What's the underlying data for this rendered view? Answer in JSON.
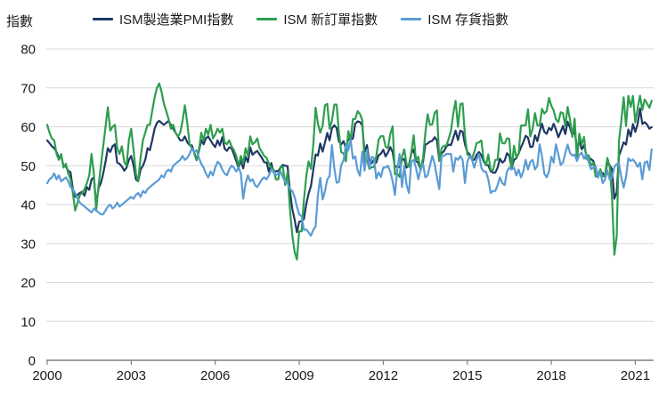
{
  "y_axis_title": "指數",
  "legend": [
    {
      "label": "ISM製造業PMI指數",
      "color": "#1F3864"
    },
    {
      "label": "ISM 新訂單指數",
      "color": "#2E9E4E"
    },
    {
      "label": "ISM 存貨指數",
      "color": "#5B9BD5"
    }
  ],
  "chart_data": {
    "type": "line",
    "title": "",
    "ylabel": "指數",
    "xlabel": "",
    "ylim": [
      0,
      80
    ],
    "grid": "horizontal",
    "legend_position": "top",
    "frequency": "monthly",
    "x_start": "2000-01",
    "x_end": "2021-08",
    "x_tick_labels": [
      2000,
      2003,
      2006,
      2009,
      2012,
      2015,
      2018,
      2021
    ],
    "y_tick_labels": [
      0,
      10,
      20,
      30,
      40,
      50,
      60,
      70,
      80
    ],
    "series": [
      {
        "name": "ISM製造業PMI指數",
        "color": "#1F3864",
        "values": [
          56.5,
          55.8,
          55.0,
          54.5,
          53.5,
          52.0,
          52.5,
          50.0,
          49.8,
          48.7,
          48.3,
          44.0,
          42.0,
          42.5,
          43.0,
          43.3,
          42.3,
          44.5,
          43.8,
          46.5,
          47.0,
          40.0,
          44.3,
          45.5,
          48.0,
          51.0,
          54.5,
          53.5,
          55.0,
          55.5,
          50.8,
          50.5,
          49.8,
          48.7,
          49.5,
          51.5,
          52.5,
          50.0,
          46.5,
          46.0,
          49.0,
          50.0,
          51.5,
          54.5,
          54.0,
          56.5,
          59.5,
          61.0,
          61.5,
          61.0,
          60.5,
          61.0,
          61.5,
          60.5,
          59.5,
          58.5,
          57.5,
          56.5,
          56.5,
          57.5,
          56.0,
          55.3,
          55.2,
          53.3,
          51.4,
          53.8,
          56.6,
          55.5,
          57.0,
          57.5,
          56.5,
          55.5,
          54.8,
          56.5,
          55.2,
          57.3,
          54.4,
          53.8,
          54.7,
          54.5,
          52.9,
          51.2,
          49.5,
          51.4,
          49.3,
          52.3,
          50.9,
          54.7,
          52.8,
          53.4,
          53.8,
          52.9,
          52.0,
          50.9,
          50.8,
          48.4,
          50.7,
          48.3,
          48.6,
          48.6,
          49.6,
          50.2,
          50.0,
          49.9,
          43.5,
          38.9,
          36.2,
          32.9,
          35.6,
          35.8,
          36.3,
          40.1,
          42.8,
          44.8,
          48.9,
          52.9,
          52.6,
          55.7,
          53.6,
          55.9,
          58.4,
          56.5,
          59.6,
          60.4,
          59.7,
          56.2,
          55.5,
          56.3,
          54.4,
          56.9,
          56.6,
          57.0,
          60.8,
          61.4,
          61.2,
          60.4,
          53.5,
          55.3,
          50.9,
          50.6,
          51.6,
          50.8,
          52.7,
          53.1,
          54.1,
          52.4,
          53.4,
          54.8,
          53.5,
          49.7,
          49.8,
          49.6,
          51.5,
          51.7,
          49.5,
          50.2,
          53.1,
          54.2,
          51.3,
          50.7,
          49.0,
          50.9,
          55.4,
          55.7,
          56.2,
          56.4,
          57.3,
          56.5,
          51.3,
          53.2,
          53.7,
          54.9,
          55.4,
          55.3,
          57.1,
          59.0,
          56.6,
          59.0,
          58.7,
          55.5,
          53.5,
          52.9,
          51.5,
          51.5,
          52.8,
          53.5,
          52.7,
          51.1,
          50.2,
          50.1,
          48.6,
          48.2,
          48.2,
          49.5,
          51.8,
          50.8,
          51.3,
          53.2,
          52.6,
          49.4,
          51.5,
          51.9,
          53.2,
          54.7,
          56.0,
          57.7,
          57.2,
          54.8,
          54.9,
          57.8,
          56.3,
          58.8,
          60.8,
          58.7,
          58.2,
          59.7,
          59.1,
          60.8,
          59.3,
          57.3,
          58.7,
          60.2,
          58.1,
          61.3,
          59.8,
          57.7,
          59.3,
          54.1,
          56.6,
          54.2,
          55.3,
          52.8,
          52.1,
          51.7,
          51.2,
          49.1,
          47.8,
          48.3,
          48.1,
          47.2,
          50.9,
          50.1,
          49.1,
          41.5,
          43.1,
          52.6,
          54.2,
          56.0,
          55.4,
          59.3,
          57.5,
          60.7,
          58.7,
          60.8,
          64.7,
          60.7,
          61.2,
          60.6,
          59.5,
          59.9
        ]
      },
      {
        "name": "ISM 新訂單指數",
        "color": "#2E9E4E",
        "values": [
          60.5,
          58.5,
          57.0,
          56.5,
          53.0,
          51.5,
          53.0,
          49.5,
          50.5,
          48.0,
          46.5,
          43.0,
          38.5,
          40.5,
          42.5,
          43.0,
          44.0,
          45.5,
          47.5,
          53.0,
          48.0,
          38.5,
          45.0,
          50.0,
          55.0,
          60.0,
          65.0,
          59.0,
          60.0,
          60.5,
          54.5,
          53.0,
          55.0,
          51.0,
          50.0,
          56.5,
          59.5,
          54.0,
          48.0,
          46.0,
          52.0,
          56.5,
          58.5,
          60.5,
          60.5,
          64.0,
          67.5,
          70.0,
          71.1,
          69.0,
          66.0,
          64.0,
          62.0,
          59.5,
          60.5,
          58.5,
          57.5,
          58.5,
          61.5,
          65.5,
          61.0,
          55.5,
          54.5,
          53.5,
          51.5,
          54.0,
          58.5,
          56.5,
          59.5,
          58.0,
          60.5,
          57.0,
          58.0,
          59.5,
          58.5,
          59.5,
          56.0,
          55.5,
          56.5,
          55.0,
          54.0,
          52.5,
          50.0,
          52.5,
          50.5,
          54.5,
          52.5,
          57.5,
          55.5,
          56.0,
          57.0,
          54.5,
          53.5,
          52.5,
          52.0,
          50.5,
          49.5,
          49.0,
          46.5,
          46.5,
          49.7,
          49.6,
          45.0,
          48.3,
          38.8,
          32.2,
          27.9,
          25.9,
          33.2,
          33.1,
          41.2,
          47.2,
          51.1,
          49.2,
          55.3,
          64.9,
          60.8,
          58.5,
          60.3,
          65.5,
          65.9,
          59.5,
          61.5,
          65.7,
          65.7,
          58.5,
          53.5,
          53.1,
          51.1,
          58.9,
          56.6,
          62.0,
          62.0,
          64.0,
          63.3,
          61.7,
          51.0,
          51.6,
          49.2,
          49.6,
          49.6,
          52.4,
          56.7,
          57.6,
          57.6,
          54.9,
          54.5,
          58.2,
          60.1,
          47.8,
          48.0,
          47.1,
          52.3,
          54.2,
          50.3,
          49.7,
          53.3,
          57.8,
          51.4,
          52.3,
          48.8,
          51.9,
          58.3,
          63.2,
          60.5,
          60.6,
          63.6,
          64.2,
          51.2,
          54.5,
          55.1,
          55.1,
          56.9,
          58.9,
          63.4,
          66.7,
          60.0,
          65.8,
          66.0,
          57.8,
          52.9,
          52.5,
          51.8,
          53.5,
          55.8,
          56.0,
          56.5,
          51.6,
          50.1,
          52.9,
          48.9,
          48.8,
          51.5,
          51.5,
          58.3,
          55.8,
          55.7,
          57.0,
          56.9,
          49.1,
          55.1,
          52.1,
          53.0,
          60.3,
          60.4,
          60.4,
          64.5,
          57.5,
          59.5,
          63.5,
          60.4,
          60.3,
          64.6,
          63.4,
          64.0,
          67.4,
          65.4,
          64.2,
          61.9,
          61.2,
          63.7,
          63.5,
          60.2,
          65.1,
          61.8,
          57.4,
          62.1,
          51.3,
          58.2,
          55.5,
          57.4,
          51.7,
          52.7,
          50.0,
          50.8,
          47.2,
          47.3,
          49.1,
          47.2,
          47.6,
          52.0,
          49.8,
          42.2,
          27.1,
          31.8,
          56.4,
          61.5,
          67.6,
          60.2,
          67.9,
          65.1,
          67.9,
          61.1,
          64.8,
          68.0,
          64.3,
          67.0,
          66.0,
          64.9,
          66.7
        ]
      },
      {
        "name": "ISM 存貨指數",
        "color": "#5B9BD5",
        "values": [
          45.5,
          46.5,
          47.0,
          48.0,
          46.5,
          47.5,
          46.0,
          46.5,
          47.0,
          46.0,
          44.5,
          44.0,
          43.0,
          41.5,
          40.5,
          40.0,
          39.5,
          39.0,
          38.5,
          38.0,
          39.0,
          38.5,
          38.0,
          37.5,
          37.5,
          38.5,
          39.5,
          40.0,
          39.0,
          39.5,
          40.5,
          39.5,
          40.0,
          40.5,
          41.0,
          41.5,
          42.0,
          41.5,
          42.5,
          43.0,
          42.0,
          43.5,
          43.0,
          44.0,
          44.5,
          45.0,
          45.5,
          46.0,
          46.5,
          47.5,
          47.0,
          48.5,
          49.0,
          48.5,
          50.0,
          50.5,
          51.0,
          51.5,
          52.5,
          51.5,
          52.0,
          53.0,
          54.5,
          53.5,
          54.0,
          52.0,
          50.5,
          49.5,
          48.0,
          47.0,
          48.5,
          47.5,
          49.5,
          51.0,
          50.5,
          49.0,
          48.0,
          47.5,
          49.0,
          50.0,
          49.5,
          48.5,
          49.5,
          48.0,
          41.5,
          45.5,
          47.5,
          46.0,
          46.5,
          45.0,
          44.5,
          45.5,
          46.5,
          47.0,
          46.5,
          47.5,
          49.0,
          48.5,
          47.5,
          48.0,
          48.5,
          47.0,
          46.0,
          45.5,
          44.0,
          43.5,
          42.0,
          39.5,
          37.5,
          37.0,
          33.5,
          33.6,
          32.9,
          32.0,
          33.5,
          34.4,
          42.5,
          46.9,
          41.3,
          43.4,
          46.5,
          47.3,
          55.3,
          49.4,
          45.6,
          45.8,
          50.2,
          51.4,
          55.6,
          53.9,
          56.7,
          51.8,
          52.4,
          48.8,
          47.4,
          53.6,
          48.7,
          54.1,
          49.3,
          52.3,
          52.0,
          46.7,
          48.3,
          47.1,
          49.5,
          49.5,
          50.0,
          48.5,
          46.0,
          42.5,
          49.0,
          53.0,
          44.5,
          50.0,
          45.0,
          43.0,
          51.0,
          51.5,
          49.5,
          46.5,
          49.0,
          50.5,
          47.0,
          47.5,
          50.0,
          52.5,
          50.5,
          47.0,
          44.0,
          52.5,
          52.5,
          53.0,
          53.0,
          53.0,
          48.5,
          52.0,
          51.5,
          52.5,
          51.5,
          45.5,
          51.0,
          52.5,
          51.5,
          49.5,
          51.5,
          53.0,
          49.5,
          48.5,
          48.5,
          46.5,
          43.0,
          43.5,
          43.5,
          45.0,
          47.0,
          45.5,
          45.0,
          48.5,
          49.5,
          49.0,
          49.5,
          47.5,
          49.0,
          47.0,
          48.5,
          51.5,
          49.0,
          51.0,
          51.5,
          49.0,
          50.0,
          55.5,
          52.5,
          48.0,
          47.0,
          48.5,
          52.3,
          50.8,
          55.5,
          52.9,
          50.2,
          50.8,
          53.3,
          55.4,
          53.3,
          52.6,
          52.9,
          51.2,
          52.8,
          53.4,
          51.8,
          52.9,
          50.9,
          49.1,
          49.5,
          49.9,
          46.9,
          48.4,
          45.5,
          46.5,
          48.8,
          46.5,
          46.9,
          49.7,
          50.4,
          50.5,
          47.0,
          44.4,
          47.1,
          51.9,
          51.2,
          51.6,
          50.8,
          49.7,
          50.8,
          46.5,
          50.8,
          51.1,
          48.9,
          54.2
        ]
      }
    ]
  },
  "style": {
    "grid_color": "#D9D9D9",
    "axis_color": "#7F7F7F",
    "text_color": "#1a1a1a"
  }
}
